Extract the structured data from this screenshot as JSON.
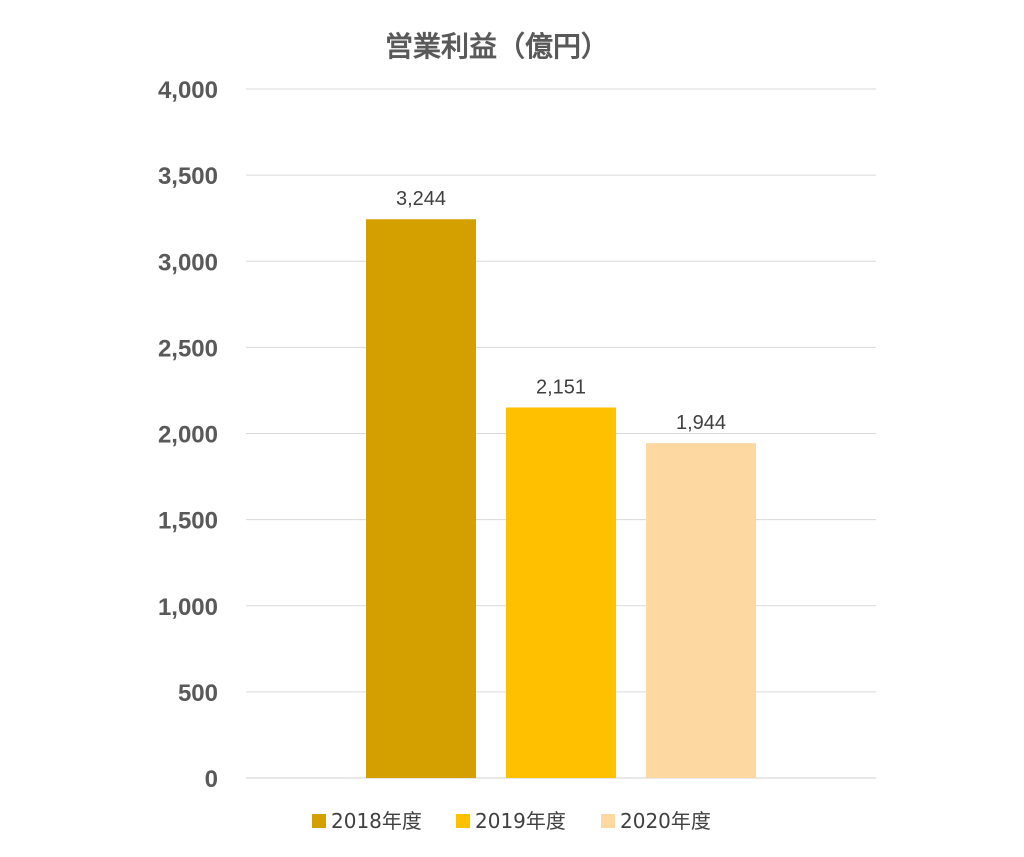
{
  "chart_data": {
    "type": "bar",
    "title": "営業利益（億円）",
    "categories": [
      "2018年度",
      "2019年度",
      "2020年度"
    ],
    "values": [
      3244,
      2151,
      1944
    ],
    "value_labels": [
      "3,244",
      "2,151",
      "1,944"
    ],
    "colors": [
      "#D4A000",
      "#FFC000",
      "#FDD8A0"
    ],
    "ylim": [
      0,
      4000
    ],
    "yticks": [
      0,
      500,
      1000,
      1500,
      2000,
      2500,
      3000,
      3500,
      4000
    ],
    "ytick_labels": [
      "0",
      "500",
      "1,000",
      "1,500",
      "2,000",
      "2,500",
      "3,000",
      "3,500",
      "4,000"
    ],
    "grid": true,
    "legend_position": "bottom",
    "xlabel": "",
    "ylabel": ""
  }
}
